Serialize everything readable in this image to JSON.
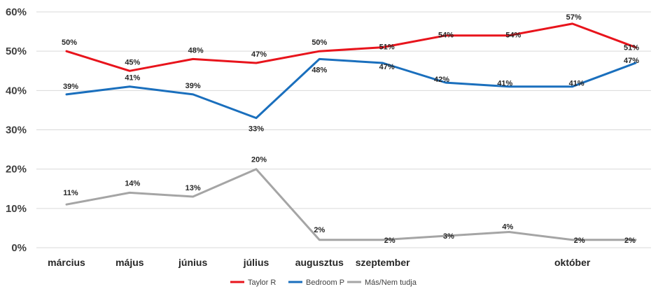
{
  "chart_data": {
    "type": "line",
    "title": "",
    "xlabel": "",
    "ylabel": "",
    "ylim": [
      0,
      60
    ],
    "yticks": [
      "0%",
      "10%",
      "20%",
      "30%",
      "40%",
      "50%",
      "60%"
    ],
    "x_labels": [
      "március",
      "május",
      "június",
      "július",
      "augusztus",
      "szeptember",
      "",
      "",
      "október",
      ""
    ],
    "grid": true,
    "legend_position": "bottom",
    "series": [
      {
        "name": "Taylor R",
        "color": "#e8141c",
        "values": [
          50,
          45,
          48,
          47,
          50,
          51,
          54,
          54,
          57,
          51
        ],
        "labels": [
          "50%",
          "45%",
          "48%",
          "47%",
          "50%",
          "51%",
          "54%",
          "54%",
          "57%",
          "51%"
        ]
      },
      {
        "name": "Bedroom P",
        "color": "#1a6fbd",
        "values": [
          39,
          41,
          39,
          33,
          48,
          47,
          42,
          41,
          41,
          47
        ],
        "labels": [
          "39%",
          "41%",
          "39%",
          "33%",
          "48%",
          "47%",
          "42%",
          "41%",
          "41%",
          "47%"
        ]
      },
      {
        "name": "Más/Nem tudja",
        "color": "#a5a5a5",
        "values": [
          11,
          14,
          13,
          20,
          2,
          2,
          3,
          4,
          2,
          2
        ],
        "labels": [
          "11%",
          "14%",
          "13%",
          "20%",
          "2%",
          "2%",
          "3%",
          "4%",
          "2%",
          "2%"
        ]
      }
    ]
  }
}
